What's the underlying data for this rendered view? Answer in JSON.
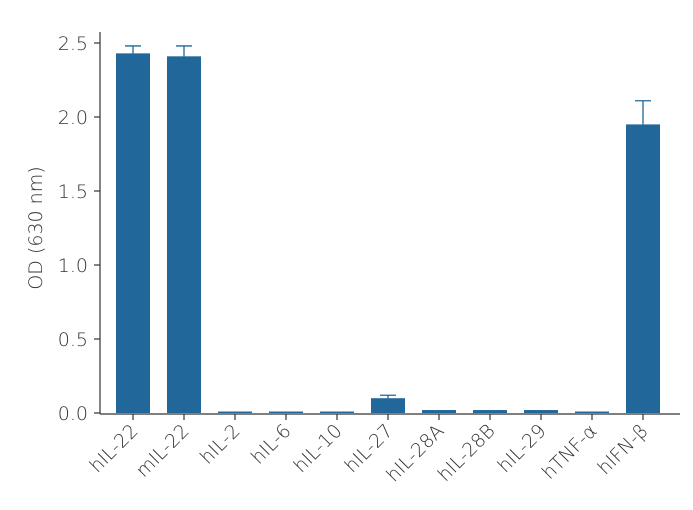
{
  "chart_data": {
    "type": "bar",
    "y_label": "OD (630 nm)",
    "categories": [
      "hIL-22",
      "mIL-22",
      "hIL-2",
      "hIL-6",
      "hIL-10",
      "hIL-27",
      "hIL-28A",
      "hIL-28B",
      "hIL-29",
      "hTNF-α",
      "hIFN-β"
    ],
    "values": [
      2.43,
      2.41,
      0.01,
      0.01,
      0.01,
      0.1,
      0.02,
      0.02,
      0.02,
      0.01,
      1.95
    ],
    "errors": [
      0.05,
      0.07,
      0,
      0,
      0,
      0.02,
      0,
      0,
      0,
      0,
      0.16
    ],
    "color": "#21679a",
    "ylim": [
      0,
      2.5
    ],
    "yticks": [
      {
        "value": 0,
        "label": "0.0"
      },
      0.5,
      {
        "value": 1,
        "label": "1.0"
      },
      1.5,
      {
        "value": 2,
        "label": "2.0"
      },
      2.5
    ],
    "grid": false
  }
}
